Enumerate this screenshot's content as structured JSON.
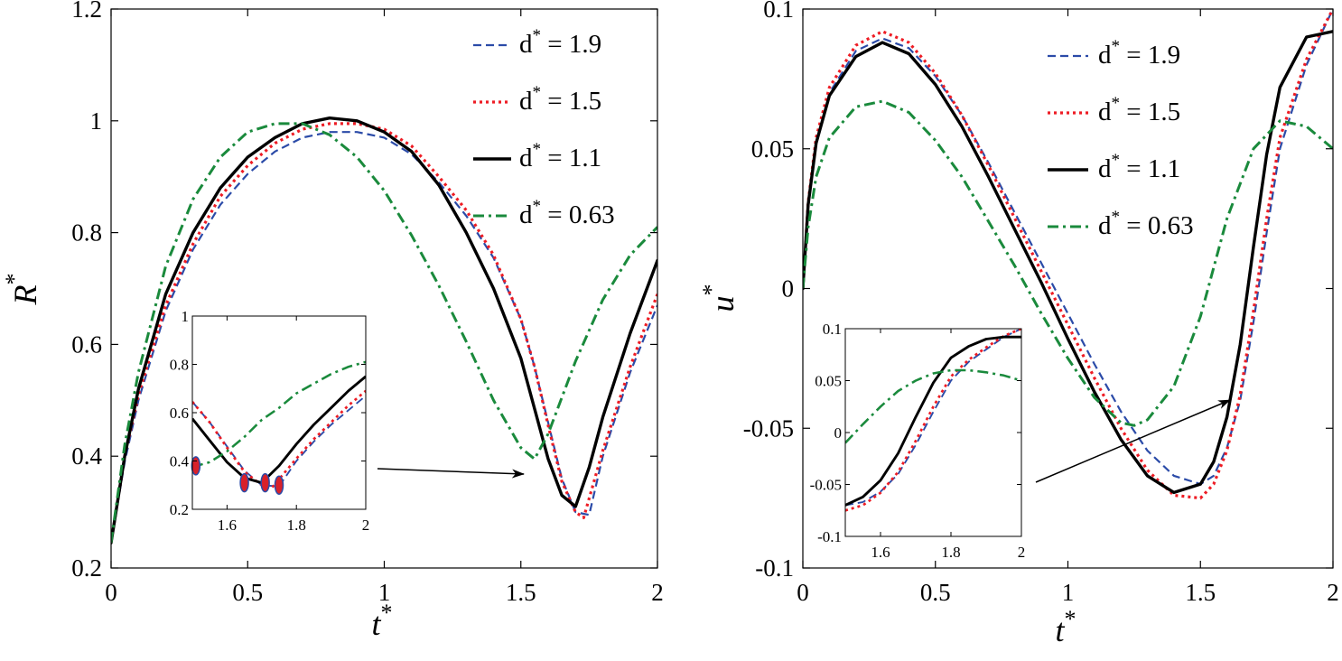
{
  "colors": {
    "d19": "#2b4ba8",
    "d15": "#ee1c24",
    "d11": "#000000",
    "d063": "#1a8a3c",
    "marker_fill": "#d8212a",
    "marker_edge": "#2b4ba8"
  },
  "chart_data": [
    {
      "type": "line",
      "id": "left",
      "xlabel": "t",
      "xlabel_sup": "*",
      "ylabel": "R",
      "ylabel_sup": "*",
      "xlim": [
        0,
        2
      ],
      "ylim": [
        0.2,
        1.2
      ],
      "xticks": [
        0,
        0.5,
        1,
        1.5,
        2
      ],
      "xtick_labels": [
        "0",
        "0.5",
        "1",
        "1.5",
        "2"
      ],
      "yticks": [
        0.2,
        0.4,
        0.6,
        0.8,
        1,
        1.2
      ],
      "ytick_labels": [
        "0.2",
        "0.4",
        "0.6",
        "0.8",
        "1",
        "1.2"
      ],
      "legend": {
        "position": "top-right",
        "entries": [
          {
            "key": "d19",
            "prefix": "d",
            "sup": "*",
            "text": "= 1.9"
          },
          {
            "key": "d15",
            "prefix": "d",
            "sup": "*",
            "text": "= 1.5"
          },
          {
            "key": "d11",
            "prefix": "d",
            "sup": "*",
            "text": "= 1.1"
          },
          {
            "key": "d063",
            "prefix": "d",
            "sup": "*",
            "text": "= 0.63"
          }
        ]
      },
      "series": [
        {
          "key": "d19",
          "style": "dashed",
          "x": [
            0,
            0.05,
            0.1,
            0.2,
            0.3,
            0.4,
            0.5,
            0.6,
            0.7,
            0.8,
            0.9,
            1.0,
            1.1,
            1.2,
            1.3,
            1.4,
            1.5,
            1.55,
            1.6,
            1.65,
            1.7,
            1.75,
            1.8,
            1.9,
            2.0
          ],
          "y": [
            0.245,
            0.39,
            0.5,
            0.66,
            0.77,
            0.85,
            0.905,
            0.945,
            0.97,
            0.98,
            0.98,
            0.97,
            0.94,
            0.89,
            0.83,
            0.755,
            0.645,
            0.56,
            0.46,
            0.36,
            0.3,
            0.295,
            0.4,
            0.55,
            0.67
          ]
        },
        {
          "key": "d15",
          "style": "dotted",
          "x": [
            0,
            0.05,
            0.1,
            0.2,
            0.3,
            0.4,
            0.5,
            0.6,
            0.7,
            0.8,
            0.9,
            1.0,
            1.1,
            1.2,
            1.3,
            1.4,
            1.5,
            1.55,
            1.6,
            1.65,
            1.7,
            1.73,
            1.8,
            1.9,
            2.0
          ],
          "y": [
            0.245,
            0.4,
            0.51,
            0.67,
            0.78,
            0.865,
            0.92,
            0.96,
            0.985,
            0.995,
            0.995,
            0.985,
            0.955,
            0.9,
            0.84,
            0.76,
            0.645,
            0.56,
            0.455,
            0.355,
            0.3,
            0.29,
            0.41,
            0.56,
            0.69
          ]
        },
        {
          "key": "d11",
          "style": "solid",
          "x": [
            0,
            0.05,
            0.1,
            0.2,
            0.3,
            0.4,
            0.5,
            0.6,
            0.7,
            0.8,
            0.9,
            1.0,
            1.1,
            1.2,
            1.3,
            1.4,
            1.5,
            1.55,
            1.6,
            1.65,
            1.7,
            1.75,
            1.8,
            1.9,
            2.0
          ],
          "y": [
            0.245,
            0.4,
            0.52,
            0.69,
            0.8,
            0.88,
            0.935,
            0.97,
            0.995,
            1.005,
            1.0,
            0.98,
            0.945,
            0.885,
            0.8,
            0.7,
            0.575,
            0.485,
            0.395,
            0.33,
            0.31,
            0.38,
            0.47,
            0.62,
            0.75
          ]
        },
        {
          "key": "d063",
          "style": "dashdot",
          "x": [
            0,
            0.05,
            0.1,
            0.2,
            0.3,
            0.4,
            0.5,
            0.6,
            0.7,
            0.8,
            0.9,
            1.0,
            1.1,
            1.2,
            1.3,
            1.4,
            1.5,
            1.55,
            1.6,
            1.7,
            1.8,
            1.9,
            2.0
          ],
          "y": [
            0.245,
            0.42,
            0.55,
            0.74,
            0.86,
            0.935,
            0.98,
            0.995,
            0.995,
            0.975,
            0.935,
            0.875,
            0.795,
            0.705,
            0.605,
            0.5,
            0.415,
            0.395,
            0.44,
            0.57,
            0.68,
            0.76,
            0.81
          ]
        }
      ],
      "inset": {
        "xlim": [
          1.5,
          2
        ],
        "ylim": [
          0.2,
          1
        ],
        "xticks": [
          1.6,
          1.8,
          2
        ],
        "xtick_labels": [
          "1.6",
          "1.8",
          "2"
        ],
        "yticks": [
          0.2,
          0.4,
          0.6,
          0.8,
          1
        ],
        "ytick_labels": [
          "0.2",
          "0.4",
          "0.6",
          "0.8",
          "1"
        ],
        "markers": [
          {
            "x": 1.51,
            "y": 0.38
          },
          {
            "x": 1.65,
            "y": 0.31
          },
          {
            "x": 1.71,
            "y": 0.31
          },
          {
            "x": 1.75,
            "y": 0.3
          }
        ],
        "series": [
          {
            "key": "d19",
            "style": "dashed",
            "x": [
              1.5,
              1.55,
              1.6,
              1.65,
              1.7,
              1.75,
              1.8,
              1.85,
              1.9,
              1.95,
              2.0
            ],
            "y": [
              0.645,
              0.56,
              0.46,
              0.36,
              0.3,
              0.295,
              0.4,
              0.48,
              0.55,
              0.61,
              0.67
            ]
          },
          {
            "key": "d15",
            "style": "dotted",
            "x": [
              1.5,
              1.55,
              1.6,
              1.65,
              1.7,
              1.73,
              1.8,
              1.85,
              1.9,
              1.95,
              2.0
            ],
            "y": [
              0.645,
              0.56,
              0.455,
              0.355,
              0.3,
              0.29,
              0.41,
              0.49,
              0.56,
              0.63,
              0.69
            ]
          },
          {
            "key": "d11",
            "style": "solid",
            "x": [
              1.5,
              1.55,
              1.6,
              1.65,
              1.7,
              1.75,
              1.8,
              1.85,
              1.9,
              1.95,
              2.0
            ],
            "y": [
              0.575,
              0.485,
              0.395,
              0.33,
              0.31,
              0.38,
              0.47,
              0.55,
              0.62,
              0.69,
              0.75
            ]
          },
          {
            "key": "d063",
            "style": "dashdot",
            "x": [
              1.5,
              1.55,
              1.6,
              1.65,
              1.7,
              1.75,
              1.8,
              1.85,
              1.9,
              1.95,
              2.0
            ],
            "y": [
              0.375,
              0.395,
              0.44,
              0.5,
              0.57,
              0.62,
              0.68,
              0.72,
              0.76,
              0.79,
              0.81
            ]
          }
        ]
      }
    },
    {
      "type": "line",
      "id": "right",
      "xlabel": "t",
      "xlabel_sup": "*",
      "ylabel": "u",
      "ylabel_sup": "*",
      "xlim": [
        0,
        2
      ],
      "ylim": [
        -0.1,
        0.1
      ],
      "xticks": [
        0,
        0.5,
        1,
        1.5,
        2
      ],
      "xtick_labels": [
        "0",
        "0.5",
        "1",
        "1.5",
        "2"
      ],
      "yticks": [
        -0.1,
        -0.05,
        0,
        0.05,
        0.1
      ],
      "ytick_labels": [
        "-0.1",
        "-0.05",
        "0",
        "0.05",
        "0.1"
      ],
      "legend": {
        "position": "top-right",
        "entries": [
          {
            "key": "d19",
            "prefix": "d",
            "sup": "*",
            "text": "= 1.9"
          },
          {
            "key": "d15",
            "prefix": "d",
            "sup": "*",
            "text": "= 1.5"
          },
          {
            "key": "d11",
            "prefix": "d",
            "sup": "*",
            "text": "= 1.1"
          },
          {
            "key": "d063",
            "prefix": "d",
            "sup": "*",
            "text": "= 0.63"
          }
        ]
      },
      "series": [
        {
          "key": "d19",
          "style": "dashed",
          "x": [
            0,
            0.02,
            0.05,
            0.1,
            0.2,
            0.3,
            0.4,
            0.5,
            0.6,
            0.7,
            0.8,
            0.9,
            1.0,
            1.1,
            1.2,
            1.3,
            1.4,
            1.5,
            1.55,
            1.6,
            1.65,
            1.7,
            1.75,
            1.8,
            1.9,
            2.0
          ],
          "y": [
            0,
            0.03,
            0.052,
            0.07,
            0.085,
            0.0895,
            0.086,
            0.076,
            0.062,
            0.045,
            0.027,
            0.009,
            -0.009,
            -0.027,
            -0.044,
            -0.058,
            -0.067,
            -0.07,
            -0.067,
            -0.057,
            -0.04,
            -0.012,
            0.02,
            0.05,
            0.08,
            0.1
          ]
        },
        {
          "key": "d15",
          "style": "dotted",
          "x": [
            0,
            0.02,
            0.05,
            0.1,
            0.2,
            0.3,
            0.4,
            0.5,
            0.6,
            0.7,
            0.8,
            0.9,
            1.0,
            1.1,
            1.2,
            1.3,
            1.4,
            1.5,
            1.55,
            1.6,
            1.65,
            1.7,
            1.75,
            1.8,
            1.9,
            2.0
          ],
          "y": [
            0,
            0.031,
            0.054,
            0.072,
            0.087,
            0.092,
            0.088,
            0.077,
            0.062,
            0.044,
            0.025,
            0.006,
            -0.013,
            -0.032,
            -0.05,
            -0.065,
            -0.074,
            -0.075,
            -0.07,
            -0.058,
            -0.038,
            -0.008,
            0.025,
            0.054,
            0.082,
            0.1
          ]
        },
        {
          "key": "d11",
          "style": "solid",
          "x": [
            0,
            0.02,
            0.05,
            0.1,
            0.2,
            0.3,
            0.4,
            0.5,
            0.6,
            0.7,
            0.8,
            0.9,
            1.0,
            1.1,
            1.2,
            1.3,
            1.4,
            1.5,
            1.55,
            1.6,
            1.65,
            1.7,
            1.75,
            1.8,
            1.9,
            2.0
          ],
          "y": [
            0,
            0.03,
            0.052,
            0.069,
            0.083,
            0.088,
            0.084,
            0.073,
            0.058,
            0.04,
            0.021,
            0.002,
            -0.018,
            -0.037,
            -0.054,
            -0.067,
            -0.073,
            -0.07,
            -0.062,
            -0.046,
            -0.02,
            0.015,
            0.048,
            0.072,
            0.09,
            0.092
          ]
        },
        {
          "key": "d063",
          "style": "dashdot",
          "x": [
            0,
            0.02,
            0.05,
            0.1,
            0.2,
            0.3,
            0.4,
            0.5,
            0.6,
            0.7,
            0.8,
            0.9,
            1.0,
            1.1,
            1.2,
            1.25,
            1.3,
            1.4,
            1.5,
            1.6,
            1.7,
            1.8,
            1.9,
            2.0
          ],
          "y": [
            0,
            0.022,
            0.04,
            0.054,
            0.065,
            0.067,
            0.063,
            0.053,
            0.04,
            0.024,
            0.008,
            -0.009,
            -0.025,
            -0.039,
            -0.048,
            -0.049,
            -0.047,
            -0.035,
            -0.01,
            0.025,
            0.05,
            0.06,
            0.058,
            0.05
          ]
        }
      ],
      "inset": {
        "xlim": [
          1.5,
          2
        ],
        "ylim": [
          -0.1,
          0.1
        ],
        "xticks": [
          1.6,
          1.8,
          2
        ],
        "xtick_labels": [
          "1.6",
          "1.8",
          "2"
        ],
        "yticks": [
          -0.1,
          -0.05,
          0,
          0.05,
          0.1
        ],
        "ytick_labels": [
          "-0.1",
          "-0.05",
          "0",
          "0.05",
          "0.1"
        ],
        "series": [
          {
            "key": "d19",
            "style": "dashed",
            "x": [
              1.5,
              1.55,
              1.6,
              1.65,
              1.7,
              1.75,
              1.8,
              1.85,
              1.9,
              1.95,
              2.0
            ],
            "y": [
              -0.07,
              -0.067,
              -0.057,
              -0.04,
              -0.012,
              0.02,
              0.05,
              0.068,
              0.08,
              0.092,
              0.1
            ]
          },
          {
            "key": "d15",
            "style": "dotted",
            "x": [
              1.5,
              1.55,
              1.6,
              1.65,
              1.7,
              1.75,
              1.8,
              1.85,
              1.9,
              1.95,
              2.0
            ],
            "y": [
              -0.075,
              -0.07,
              -0.058,
              -0.038,
              -0.008,
              0.025,
              0.054,
              0.07,
              0.082,
              0.093,
              0.1
            ]
          },
          {
            "key": "d11",
            "style": "solid",
            "x": [
              1.5,
              1.55,
              1.6,
              1.65,
              1.7,
              1.75,
              1.8,
              1.85,
              1.9,
              1.95,
              2.0
            ],
            "y": [
              -0.07,
              -0.062,
              -0.046,
              -0.02,
              0.015,
              0.048,
              0.072,
              0.083,
              0.09,
              0.092,
              0.092
            ]
          },
          {
            "key": "d063",
            "style": "dashdot",
            "x": [
              1.5,
              1.55,
              1.6,
              1.65,
              1.7,
              1.75,
              1.8,
              1.85,
              1.9,
              1.95,
              2.0
            ],
            "y": [
              -0.01,
              0.008,
              0.025,
              0.04,
              0.05,
              0.057,
              0.06,
              0.06,
              0.058,
              0.055,
              0.05
            ]
          }
        ]
      }
    }
  ]
}
